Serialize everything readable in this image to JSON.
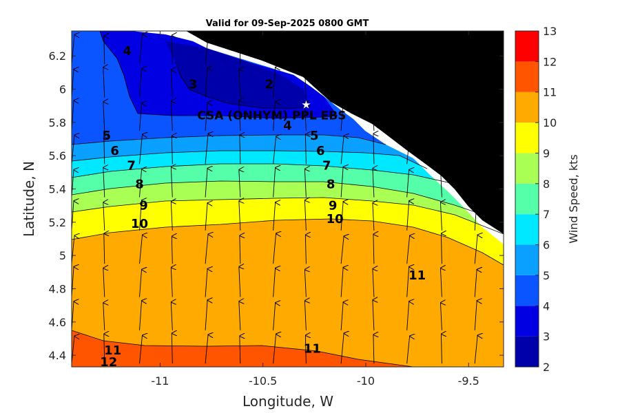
{
  "chart_data": {
    "type": "filled-contour-with-wind-vectors",
    "title": "Valid for 09-Sep-2025 0800 GMT",
    "xlabel": "Longitude, W",
    "ylabel": "Latitude, N",
    "xlim": [
      -11.43,
      -9.33
    ],
    "ylim": [
      4.33,
      6.35
    ],
    "x_ticks": [
      -11,
      -10.5,
      -10,
      -9.5
    ],
    "x_tick_labels": [
      "-11",
      "-10.5",
      "-10",
      "-9.5"
    ],
    "y_ticks": [
      4.4,
      4.6,
      4.8,
      5,
      5.2,
      5.4,
      5.6,
      5.8,
      6,
      6.2
    ],
    "y_tick_labels": [
      "4.4",
      "4.6",
      "4.8",
      "5",
      "5.2",
      "5.4",
      "5.6",
      "5.8",
      "6",
      "6.2"
    ],
    "colorbar": {
      "label": "Wind Speed, kts",
      "range": [
        2,
        13
      ],
      "ticks": [
        2,
        3,
        4,
        5,
        6,
        7,
        8,
        9,
        10,
        11,
        12,
        13
      ],
      "tick_labels": [
        "2",
        "3",
        "4",
        "5",
        "6",
        "7",
        "8",
        "9",
        "10",
        "11",
        "12",
        "13"
      ],
      "level_colors": [
        "#0000aa",
        "#0000e3",
        "#0a55ff",
        "#0aa0ff",
        "#00e8ff",
        "#55ffaa",
        "#aaff55",
        "#ffff00",
        "#ffaa00",
        "#ff5500",
        "#ff0000"
      ]
    },
    "land_color": "#000000",
    "contour_labels": [
      {
        "text": "2",
        "x": -10.47,
        "y": 6.03
      },
      {
        "text": "3",
        "x": -10.84,
        "y": 6.03
      },
      {
        "text": "4",
        "x": -11.16,
        "y": 6.23
      },
      {
        "text": "4",
        "x": -10.38,
        "y": 5.78
      },
      {
        "text": "5",
        "x": -11.26,
        "y": 5.72
      },
      {
        "text": "5",
        "x": -10.25,
        "y": 5.72
      },
      {
        "text": "6",
        "x": -11.22,
        "y": 5.63
      },
      {
        "text": "6",
        "x": -10.22,
        "y": 5.63
      },
      {
        "text": "7",
        "x": -11.14,
        "y": 5.54
      },
      {
        "text": "7",
        "x": -10.19,
        "y": 5.54
      },
      {
        "text": "8",
        "x": -11.1,
        "y": 5.43
      },
      {
        "text": "8",
        "x": -10.17,
        "y": 5.43
      },
      {
        "text": "9",
        "x": -11.08,
        "y": 5.3
      },
      {
        "text": "9",
        "x": -10.16,
        "y": 5.3
      },
      {
        "text": "10",
        "x": -11.1,
        "y": 5.19
      },
      {
        "text": "10",
        "x": -10.15,
        "y": 5.22
      },
      {
        "text": "11",
        "x": -9.75,
        "y": 4.88
      },
      {
        "text": "11",
        "x": -11.23,
        "y": 4.43
      },
      {
        "text": "11",
        "x": -10.26,
        "y": 4.44
      },
      {
        "text": "12",
        "x": -11.25,
        "y": 4.36
      }
    ],
    "site": {
      "label": "CSA (ONHYM) PPL EBS",
      "x": -10.29,
      "y": 5.91
    },
    "wind_vectors": {
      "longitudes": [
        -11.43,
        -11.27,
        -11.1,
        -10.94,
        -10.78,
        -10.61,
        -10.45,
        -10.29,
        -10.12,
        -9.96,
        -9.8,
        -9.63,
        -9.47
      ],
      "latitudes": [
        4.35,
        4.55,
        4.75,
        4.95,
        5.15,
        5.35,
        5.55,
        5.75,
        5.95,
        6.15
      ],
      "direction": "northward, slight lean"
    }
  }
}
